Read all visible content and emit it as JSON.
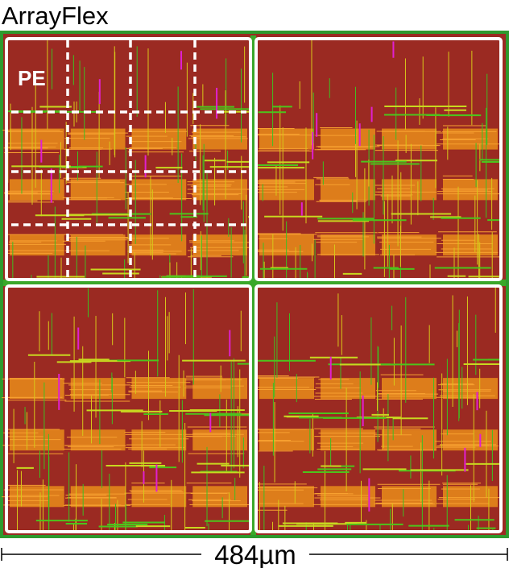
{
  "header": {
    "title": "ArrayFlex"
  },
  "layout": {
    "pe_label": "PE",
    "scale_label": "484µm"
  }
}
